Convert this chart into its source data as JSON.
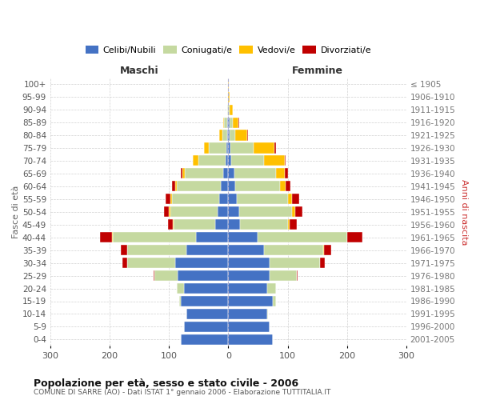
{
  "age_groups": [
    "0-4",
    "5-9",
    "10-14",
    "15-19",
    "20-24",
    "25-29",
    "30-34",
    "35-39",
    "40-44",
    "45-49",
    "50-54",
    "55-59",
    "60-64",
    "65-69",
    "70-74",
    "75-79",
    "80-84",
    "85-89",
    "90-94",
    "95-99",
    "100+"
  ],
  "birth_years": [
    "2001-2005",
    "1996-2000",
    "1991-1995",
    "1986-1990",
    "1981-1985",
    "1976-1980",
    "1971-1975",
    "1966-1970",
    "1961-1965",
    "1956-1960",
    "1951-1955",
    "1946-1950",
    "1941-1945",
    "1936-1940",
    "1931-1935",
    "1926-1930",
    "1921-1925",
    "1916-1920",
    "1911-1915",
    "1906-1910",
    "≤ 1905"
  ],
  "male_celibi": [
    80,
    75,
    70,
    80,
    75,
    85,
    90,
    70,
    55,
    22,
    18,
    15,
    12,
    8,
    5,
    3,
    2,
    2,
    0,
    0,
    0
  ],
  "male_coniugati": [
    0,
    0,
    1,
    3,
    12,
    40,
    80,
    100,
    140,
    70,
    80,
    80,
    75,
    65,
    45,
    30,
    8,
    5,
    2,
    0,
    0
  ],
  "male_vedovi": [
    0,
    0,
    0,
    0,
    0,
    0,
    0,
    1,
    1,
    2,
    2,
    3,
    3,
    5,
    10,
    8,
    5,
    2,
    0,
    0,
    0
  ],
  "male_divorziati": [
    0,
    0,
    0,
    0,
    0,
    1,
    8,
    10,
    20,
    8,
    8,
    8,
    5,
    2,
    0,
    0,
    0,
    0,
    0,
    0,
    0
  ],
  "female_celibi": [
    75,
    70,
    65,
    75,
    65,
    70,
    70,
    60,
    50,
    20,
    18,
    15,
    12,
    10,
    5,
    3,
    2,
    2,
    0,
    0,
    0
  ],
  "female_coniugati": [
    0,
    0,
    2,
    5,
    15,
    45,
    85,
    100,
    150,
    80,
    90,
    85,
    75,
    70,
    55,
    40,
    10,
    5,
    2,
    0,
    0
  ],
  "female_vedovi": [
    0,
    0,
    0,
    0,
    0,
    0,
    0,
    1,
    1,
    3,
    5,
    8,
    10,
    15,
    35,
    35,
    20,
    10,
    5,
    2,
    1
  ],
  "female_divorziati": [
    0,
    0,
    0,
    0,
    0,
    2,
    8,
    12,
    25,
    12,
    12,
    12,
    8,
    5,
    2,
    2,
    1,
    2,
    0,
    0,
    0
  ],
  "color_celibi": "#4472c4",
  "color_coniugati": "#c5d9a0",
  "color_vedovi": "#ffc000",
  "color_divorziati": "#c00000",
  "title_main": "Popolazione per età, sesso e stato civile - 2006",
  "title_sub": "COMUNE DI SARRE (AO) - Dati ISTAT 1° gennaio 2006 - Elaborazione TUTTITALIA.IT",
  "ylabel_left": "Fasce di età",
  "ylabel_right": "Anni di nascita",
  "xlabel_left": "Maschi",
  "xlabel_right": "Femmine",
  "xlim": 300,
  "bg_color": "#ffffff",
  "grid_color": "#cccccc"
}
